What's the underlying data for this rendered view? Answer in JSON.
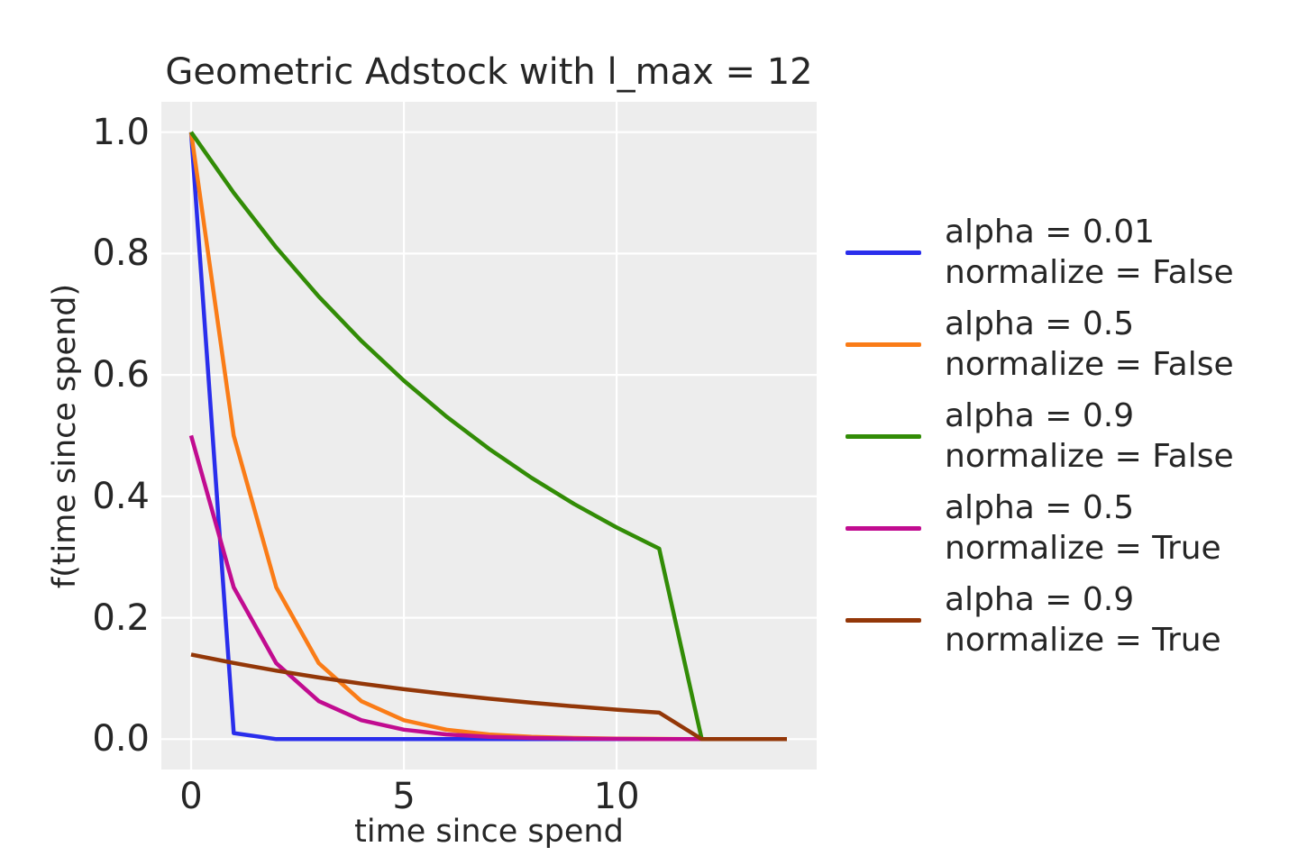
{
  "title": "Geometric Adstock with l_max = 12",
  "axes": {
    "xlabel": "time since spend",
    "ylabel": "f(time since spend)",
    "x_tick_labels": [
      "0",
      "5",
      "10"
    ],
    "y_tick_labels": [
      "0.0",
      "0.2",
      "0.4",
      "0.6",
      "0.8",
      "1.0"
    ]
  },
  "colors": {
    "plot_background": "#ededed",
    "gridline": "#ffffff",
    "text": "#262626",
    "series": [
      "#2a2eec",
      "#fa7c17",
      "#328c06",
      "#c10c90",
      "#933708"
    ]
  },
  "chart_data": {
    "type": "line",
    "title": "Geometric Adstock with l_max = 12",
    "xlabel": "time since spend",
    "ylabel": "f(time since spend)",
    "grid": true,
    "legend_position": "right-outside",
    "xlim": [
      -0.7,
      14.7
    ],
    "ylim": [
      -0.05,
      1.05
    ],
    "x_ticks": [
      0,
      5,
      10
    ],
    "y_ticks": [
      0.0,
      0.2,
      0.4,
      0.6,
      0.8,
      1.0
    ],
    "x": [
      0,
      1,
      2,
      3,
      4,
      5,
      6,
      7,
      8,
      9,
      10,
      11,
      12,
      13,
      14
    ],
    "series": [
      {
        "label": [
          "alpha = 0.01",
          "normalize = False"
        ],
        "color": "#2a2eec",
        "values": [
          1.0,
          0.01,
          0.0001,
          1e-06,
          0,
          0,
          0,
          0,
          0,
          0,
          0,
          0,
          0,
          0,
          0
        ]
      },
      {
        "label": [
          "alpha = 0.5",
          "normalize = False"
        ],
        "color": "#fa7c17",
        "values": [
          1.0,
          0.5,
          0.25,
          0.125,
          0.0625,
          0.03125,
          0.015625,
          0.007813,
          0.003906,
          0.001953,
          0.000977,
          0.000488,
          0,
          0,
          0
        ]
      },
      {
        "label": [
          "alpha = 0.9",
          "normalize = False"
        ],
        "color": "#328c06",
        "values": [
          1.0,
          0.9,
          0.81,
          0.729,
          0.6561,
          0.59049,
          0.531441,
          0.478297,
          0.430467,
          0.38742,
          0.348678,
          0.313811,
          0,
          0,
          0
        ]
      },
      {
        "label": [
          "alpha = 0.5",
          "normalize = True"
        ],
        "color": "#c10c90",
        "values": [
          0.500122,
          0.250061,
          0.125031,
          0.062515,
          0.031258,
          0.015629,
          0.007814,
          0.003907,
          0.001954,
          0.000977,
          0.000488,
          0.000244,
          0,
          0,
          0
        ]
      },
      {
        "label": [
          "alpha = 0.9",
          "normalize = True"
        ],
        "color": "#933708",
        "values": [
          0.139359,
          0.125423,
          0.112881,
          0.101593,
          0.091434,
          0.08229,
          0.074061,
          0.066655,
          0.05999,
          0.053991,
          0.048592,
          0.043732,
          0,
          0,
          0
        ]
      }
    ]
  }
}
